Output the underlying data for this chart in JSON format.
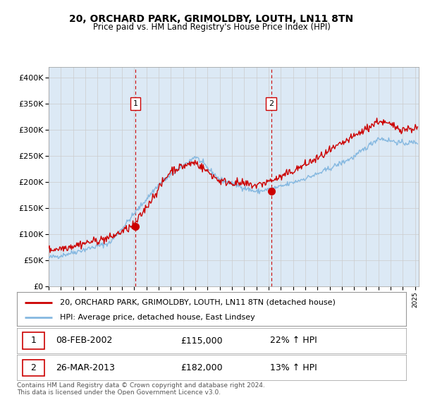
{
  "title": "20, ORCHARD PARK, GRIMOLDBY, LOUTH, LN11 8TN",
  "subtitle": "Price paid vs. HM Land Registry's House Price Index (HPI)",
  "background_color": "#dce9f5",
  "plot_bg": "#dce9f5",
  "ylim": [
    0,
    420000
  ],
  "yticks": [
    0,
    50000,
    100000,
    150000,
    200000,
    250000,
    300000,
    350000,
    400000
  ],
  "ytick_labels": [
    "£0",
    "£50K",
    "£100K",
    "£150K",
    "£200K",
    "£250K",
    "£300K",
    "£350K",
    "£400K"
  ],
  "sale1": {
    "date": 2002.1,
    "price": 115000,
    "label": "1",
    "text": "08-FEB-2002",
    "price_text": "£115,000",
    "hpi_text": "22% ↑ HPI"
  },
  "sale2": {
    "date": 2013.23,
    "price": 182000,
    "label": "2",
    "text": "26-MAR-2013",
    "price_text": "£182,000",
    "hpi_text": "13% ↑ HPI"
  },
  "legend_line1": "20, ORCHARD PARK, GRIMOLDBY, LOUTH, LN11 8TN (detached house)",
  "legend_line2": "HPI: Average price, detached house, East Lindsey",
  "footer": "Contains HM Land Registry data © Crown copyright and database right 2024.\nThis data is licensed under the Open Government Licence v3.0.",
  "hpi_color": "#85b8e0",
  "sold_color": "#cc0000",
  "vline_color": "#cc0000",
  "grid_color": "#cccccc",
  "xlim_left": 1995,
  "xlim_right": 2025.3
}
